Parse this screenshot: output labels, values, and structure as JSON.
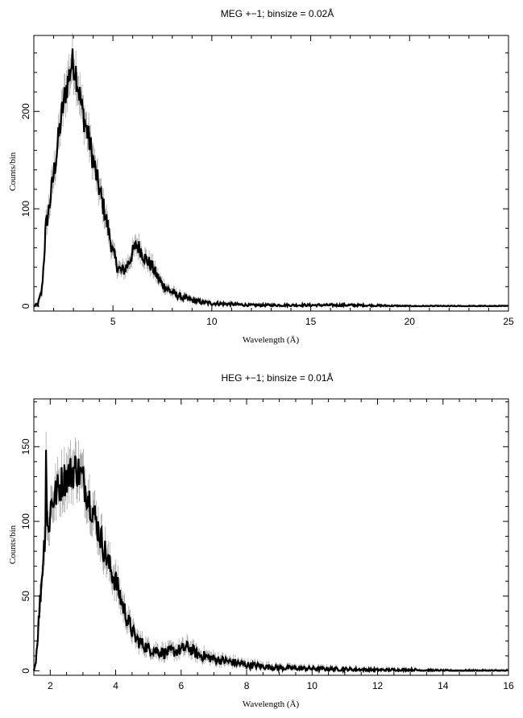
{
  "chart_data": [
    {
      "type": "line",
      "title": "MEG +−1; binsize = 0.02Å",
      "xlabel": "Wavelength (Å)",
      "ylabel": "Counts/bin",
      "xlim": [
        1.0,
        25.0
      ],
      "ylim": [
        -5,
        278
      ],
      "xticks": [
        5,
        10,
        15,
        20,
        25
      ],
      "yticks": [
        0,
        100,
        200
      ],
      "grid": false,
      "style": {
        "line_color": "#000000",
        "error_color": "#9a9a9a"
      },
      "series": [
        {
          "x": [
            1.0,
            1.2,
            1.4,
            1.5,
            1.6,
            1.8,
            2.0,
            2.2,
            2.4,
            2.6,
            2.8,
            2.9,
            3.0,
            3.1,
            3.2,
            3.3,
            3.4,
            3.6,
            3.8,
            4.0,
            4.2,
            4.4,
            4.6,
            4.8,
            5.0,
            5.2,
            5.4,
            5.6,
            5.8,
            6.0,
            6.2,
            6.4,
            6.6,
            6.8,
            7.0,
            7.2,
            7.5,
            8.0,
            8.5,
            9.0,
            9.5,
            10.0,
            11.0,
            12.0,
            13.0,
            15.0,
            17.0,
            20.0,
            22.0,
            25.0
          ],
          "y": [
            0,
            2,
            15,
            45,
            80,
            105,
            135,
            165,
            195,
            220,
            238,
            248,
            250,
            244,
            232,
            220,
            205,
            188,
            170,
            150,
            130,
            112,
            95,
            75,
            55,
            42,
            36,
            38,
            45,
            55,
            63,
            58,
            50,
            45,
            40,
            32,
            22,
            14,
            9,
            6,
            4,
            3,
            2,
            1,
            1,
            1,
            1,
            0,
            0,
            0
          ]
        }
      ]
    },
    {
      "type": "line",
      "title": "HEG +−1; binsize = 0.01Å",
      "xlabel": "Wavelength (Å)",
      "ylabel": "Counts/bin",
      "xlim": [
        1.5,
        16.0
      ],
      "ylim": [
        -3,
        182
      ],
      "xticks": [
        2,
        4,
        6,
        8,
        10,
        12,
        14,
        16
      ],
      "yticks": [
        0,
        50,
        100,
        150
      ],
      "grid": false,
      "style": {
        "line_color": "#000000",
        "error_color": "#9a9a9a"
      },
      "series": [
        {
          "x": [
            1.5,
            1.55,
            1.6,
            1.7,
            1.8,
            1.85,
            1.88,
            1.9,
            1.95,
            2.0,
            2.2,
            2.4,
            2.6,
            2.8,
            3.0,
            3.2,
            3.4,
            3.6,
            3.8,
            4.0,
            4.2,
            4.4,
            4.6,
            4.8,
            5.0,
            5.5,
            6.0,
            6.2,
            6.5,
            7.0,
            7.5,
            8.0,
            8.5,
            9.0,
            10.0,
            11.0,
            12.0,
            13.0,
            14.0,
            16.0
          ],
          "y": [
            0,
            5,
            18,
            50,
            80,
            95,
            165,
            100,
            90,
            110,
            120,
            128,
            132,
            136,
            128,
            115,
            100,
            85,
            70,
            60,
            45,
            32,
            22,
            18,
            15,
            12,
            14,
            16,
            11,
            8,
            6,
            4,
            3,
            2,
            1.5,
            1,
            0.5,
            0.5,
            0,
            0
          ]
        }
      ]
    }
  ]
}
